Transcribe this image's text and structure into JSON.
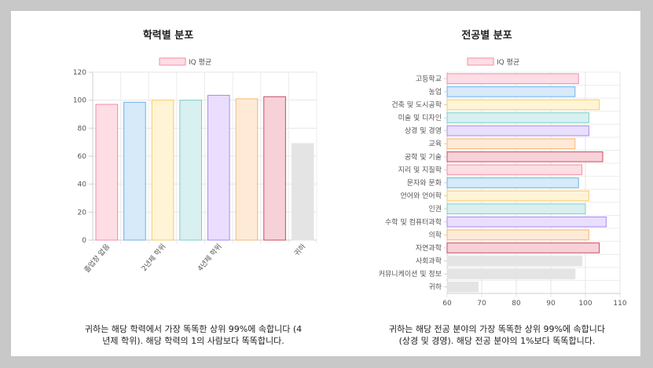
{
  "charts": {
    "education": {
      "title": "학력별 분포",
      "legend_label": "IQ 평균",
      "description": "귀하는 해당 학력에서 가장 똑똑한 상위 99%에 속합니다 (4년제 학위). 해당 학력의 1의 사람보다 똑똑합니다."
    },
    "major": {
      "title": "전공별 분포",
      "legend_label": "IQ 평균",
      "description": "귀하는 해당 전공 분야의 가장 똑똑한 상위 99%에 속합니다 (상경 및 경영). 해당 전공 분야의 1%보다 똑똑합니다."
    }
  },
  "chart_data": [
    {
      "type": "bar",
      "title": "학력별 분포",
      "legend": [
        "IQ 평균"
      ],
      "categories": [
        "졸업장 없음",
        "",
        "2년제 학위",
        "",
        "4년제 학위",
        "",
        "",
        "귀하"
      ],
      "values": [
        97,
        98.5,
        100,
        100,
        103.5,
        101,
        102.5,
        69
      ],
      "colors": [
        {
          "fill": "#ffdde5",
          "stroke": "#f08fa8"
        },
        {
          "fill": "#d6eafa",
          "stroke": "#6fb0e8"
        },
        {
          "fill": "#fff4d6",
          "stroke": "#f5cc6a"
        },
        {
          "fill": "#d8f0ef",
          "stroke": "#7ccfcb"
        },
        {
          "fill": "#e9defe",
          "stroke": "#a98af0"
        },
        {
          "fill": "#ffead8",
          "stroke": "#f6b673"
        },
        {
          "fill": "#f6d2d8",
          "stroke": "#cc4b62"
        },
        {
          "fill": "#e4e4e4",
          "stroke": "#e4e4e4"
        }
      ],
      "ylim": [
        0,
        120
      ],
      "yticks": [
        0,
        20,
        40,
        60,
        80,
        100,
        120
      ],
      "grid": true
    },
    {
      "type": "bar",
      "orientation": "horizontal",
      "title": "전공별 분포",
      "legend": [
        "IQ 평균"
      ],
      "categories": [
        "고등학교",
        "농업",
        "건축 및 도시공학",
        "미술 및 디자인",
        "상경 및 경영",
        "교육",
        "공학 및 기술",
        "지리 및 지질학",
        "문자와 문화",
        "언어와 언어학",
        "인권",
        "수학 및 컴퓨터과학",
        "의학",
        "자연과학",
        "사회과학",
        "커뮤니케이션 및 정보",
        "귀하"
      ],
      "values": [
        98,
        97,
        104,
        101,
        101,
        97,
        105,
        99,
        98,
        101,
        100,
        106,
        101,
        104,
        99,
        97,
        69
      ],
      "colors": [
        {
          "fill": "#ffdde5",
          "stroke": "#f08fa8"
        },
        {
          "fill": "#d6eafa",
          "stroke": "#6fb0e8"
        },
        {
          "fill": "#fff4d6",
          "stroke": "#f5cc6a"
        },
        {
          "fill": "#d8f0ef",
          "stroke": "#7ccfcb"
        },
        {
          "fill": "#e9defe",
          "stroke": "#a98af0"
        },
        {
          "fill": "#ffead8",
          "stroke": "#f6b673"
        },
        {
          "fill": "#f6d2d8",
          "stroke": "#cc4b62"
        },
        {
          "fill": "#ffdde5",
          "stroke": "#f08fa8"
        },
        {
          "fill": "#d6eafa",
          "stroke": "#6fb0e8"
        },
        {
          "fill": "#fff4d6",
          "stroke": "#f5cc6a"
        },
        {
          "fill": "#d8f0ef",
          "stroke": "#7ccfcb"
        },
        {
          "fill": "#e9defe",
          "stroke": "#a98af0"
        },
        {
          "fill": "#ffead8",
          "stroke": "#f6b673"
        },
        {
          "fill": "#f6d2d8",
          "stroke": "#cc4b62"
        },
        {
          "fill": "#e4e4e4",
          "stroke": "#e4e4e4"
        },
        {
          "fill": "#e4e4e4",
          "stroke": "#e4e4e4"
        },
        {
          "fill": "#e4e4e4",
          "stroke": "#e4e4e4"
        }
      ],
      "xlim": [
        60,
        110
      ],
      "xticks": [
        60,
        70,
        80,
        90,
        100,
        110
      ],
      "grid": true
    }
  ]
}
